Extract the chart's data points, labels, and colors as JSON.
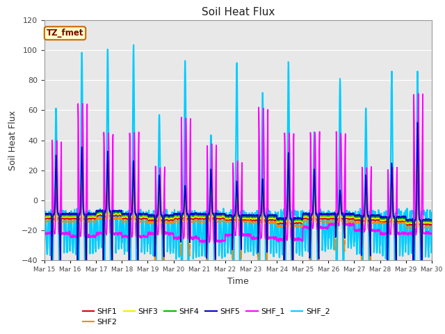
{
  "title": "Soil Heat Flux",
  "xlabel": "Time",
  "ylabel": "Soil Heat Flux",
  "ylim": [
    -40,
    120
  ],
  "y_ticks": [
    -40,
    -20,
    0,
    20,
    40,
    60,
    80,
    100,
    120
  ],
  "x_tick_labels": [
    "Mar 15",
    "Mar 16",
    "Mar 17",
    "Mar 18",
    "Mar 19",
    "Mar 20",
    "Mar 21",
    "Mar 22",
    "Mar 23",
    "Mar 24",
    "Mar 25",
    "Mar 26",
    "Mar 27",
    "Mar 28",
    "Mar 29",
    "Mar 30"
  ],
  "annotation_text": "TZ_fmet",
  "annotation_bg": "#ffffcc",
  "annotation_border": "#cc6600",
  "annotation_text_color": "#800000",
  "bg_color": "#e8e8e8",
  "fig_bg": "#ffffff",
  "series_order": [
    "SHF_2",
    "SHF_1",
    "SHF1",
    "SHF2",
    "SHF3",
    "SHF4",
    "SHF5"
  ],
  "series": {
    "SHF1": {
      "color": "#dd0000",
      "lw": 1.0
    },
    "SHF2": {
      "color": "#ff8800",
      "lw": 1.0
    },
    "SHF3": {
      "color": "#eeee00",
      "lw": 1.0
    },
    "SHF4": {
      "color": "#00bb00",
      "lw": 1.0
    },
    "SHF5": {
      "color": "#0000cc",
      "lw": 1.2
    },
    "SHF_1": {
      "color": "#ff00ff",
      "lw": 1.2
    },
    "SHF_2": {
      "color": "#00ccff",
      "lw": 1.5
    }
  },
  "legend_order": [
    "SHF1",
    "SHF2",
    "SHF3",
    "SHF4",
    "SHF5",
    "SHF_1",
    "SHF_2"
  ],
  "shf_peaks": [
    63,
    99,
    102,
    104,
    57,
    92,
    44,
    92,
    70,
    92,
    46,
    81,
    62,
    86,
    86
  ],
  "shf_troughs": [
    -35,
    -35,
    -33,
    -35,
    -35,
    -38,
    -38,
    -35,
    -36,
    -37,
    -33,
    -32,
    -35,
    -37,
    -36
  ],
  "shf1_peaks": [
    26,
    32,
    30,
    25,
    14,
    8,
    18,
    10,
    12,
    28,
    18,
    5,
    14,
    22,
    48
  ],
  "shf1_troughs": [
    -12,
    -12,
    -10,
    -12,
    -13,
    -12,
    -12,
    -13,
    -13,
    -15,
    -12,
    -12,
    -13,
    -14,
    -16
  ],
  "shf2_peaks": [
    28,
    34,
    31,
    26,
    15,
    9,
    19,
    11,
    13,
    30,
    19,
    6,
    15,
    23,
    50
  ],
  "shf2_troughs": [
    -14,
    -14,
    -12,
    -14,
    -15,
    -14,
    -14,
    -14,
    -15,
    -17,
    -14,
    -14,
    -15,
    -15,
    -18
  ],
  "shf3_peaks": [
    24,
    30,
    28,
    23,
    13,
    7,
    16,
    9,
    11,
    26,
    16,
    4,
    12,
    20,
    46
  ],
  "shf3_troughs": [
    -11,
    -11,
    -9,
    -11,
    -12,
    -11,
    -11,
    -12,
    -12,
    -14,
    -11,
    -11,
    -12,
    -13,
    -15
  ],
  "shf4_peaks": [
    22,
    28,
    26,
    21,
    11,
    6,
    14,
    7,
    9,
    24,
    14,
    3,
    10,
    18,
    44
  ],
  "shf4_troughs": [
    -10,
    -10,
    -8,
    -10,
    -11,
    -10,
    -10,
    -11,
    -11,
    -13,
    -10,
    -10,
    -11,
    -12,
    -14
  ],
  "shf5_peaks": [
    30,
    36,
    33,
    27,
    17,
    10,
    21,
    13,
    15,
    32,
    21,
    7,
    17,
    25,
    52
  ],
  "shf5_troughs": [
    -9,
    -9,
    -7,
    -9,
    -10,
    -9,
    -9,
    -10,
    -10,
    -12,
    -9,
    -9,
    -10,
    -11,
    -13
  ],
  "shf_1_peaks": [
    40,
    65,
    45,
    45,
    22,
    55,
    37,
    25,
    61,
    45,
    45,
    45,
    22,
    22,
    71
  ],
  "shf_1_troughs": [
    -22,
    -24,
    -22,
    -24,
    -22,
    -25,
    -27,
    -23,
    -25,
    -26,
    -18,
    -16,
    -20,
    -22,
    -22
  ]
}
